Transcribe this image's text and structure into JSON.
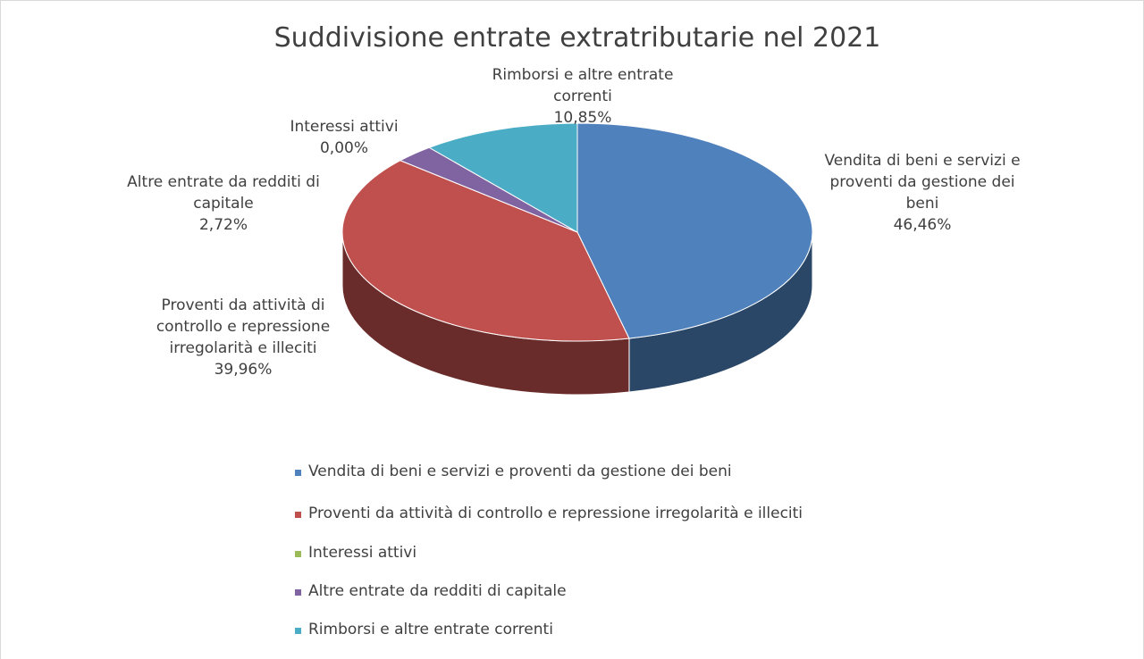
{
  "chart_data": {
    "type": "pie3d",
    "title": "Suddivisione entrate extratributarie nel 2021",
    "categories": [
      "Vendita di beni e servizi e proventi da gestione dei beni",
      "Proventi da attività di controllo e repressione irregolarità e illeciti",
      "Interessi attivi",
      "Altre entrate da redditi di capitale",
      "Rimborsi e altre entrate correnti"
    ],
    "values": [
      46.46,
      39.96,
      0,
      2.72,
      10.85
    ],
    "value_labels": [
      "46,46%",
      "39,96%",
      "0,00%",
      "2,72%",
      "10,85%"
    ],
    "colors": [
      "#4f81bd",
      "#c0504d",
      "#9bbb59",
      "#8064a2",
      "#4bacc6"
    ],
    "legend": "bottom"
  }
}
